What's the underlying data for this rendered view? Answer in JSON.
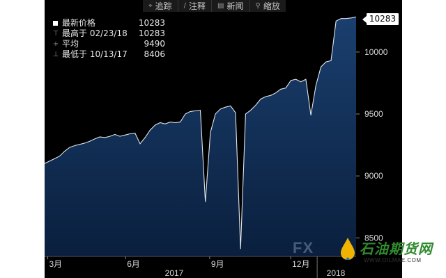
{
  "toolbar": {
    "items": [
      {
        "label": "追踪",
        "icon": "crosshair-icon"
      },
      {
        "label": "注释",
        "icon": "pencil-icon"
      },
      {
        "label": "新闻",
        "icon": "news-icon"
      },
      {
        "label": "缩放",
        "icon": "magnifier-icon"
      }
    ]
  },
  "legend": {
    "last": {
      "label": "最新价格",
      "value": "10283"
    },
    "high": {
      "label": "最高于 02/23/18",
      "value": "10283"
    },
    "avg": {
      "label": "平均",
      "value": "9490"
    },
    "low": {
      "label": "最低于 10/13/17",
      "value": "8406"
    }
  },
  "last_tag": "10283",
  "watermark": {
    "logo": "FX",
    "chinese": "石油期货网",
    "url": "WWW.OILMAE.COM"
  },
  "colors": {
    "background": "#000000",
    "fill": "#0f2a4f",
    "line": "#dfe6ee",
    "axis_text": "#d8d8d8"
  },
  "chart_data": {
    "type": "area",
    "title": "",
    "xlabel": "",
    "ylabel": "",
    "ylim": [
      8350,
      10420
    ],
    "y_ticks": [
      8500,
      9000,
      9500,
      10000
    ],
    "y_tick_labels": [
      "8500",
      "9000",
      "9500",
      "10000"
    ],
    "x_tick_labels": [
      "3月",
      "6月",
      "9月",
      "12月"
    ],
    "year_labels": [
      "2017",
      "2018"
    ],
    "grid": false,
    "series": [
      {
        "values": [
          9100,
          9120,
          9140,
          9160,
          9200,
          9230,
          9245,
          9255,
          9265,
          9280,
          9300,
          9315,
          9310,
          9320,
          9335,
          9320,
          9330,
          9340,
          9345,
          9260,
          9310,
          9370,
          9410,
          9430,
          9420,
          9435,
          9430,
          9435,
          9500,
          9520,
          9525,
          9530,
          8790,
          9350,
          9500,
          9540,
          9555,
          9565,
          9510,
          8410,
          9500,
          9530,
          9570,
          9620,
          9640,
          9650,
          9670,
          9700,
          9710,
          9770,
          9780,
          9760,
          9780,
          9490,
          9730,
          9880,
          9920,
          9930,
          10250,
          10270,
          10270,
          10275,
          10283
        ]
      }
    ],
    "last_value": 10283,
    "high": {
      "date": "02/23/18",
      "value": 10283
    },
    "average": 9490,
    "low": {
      "date": "10/13/17",
      "value": 8406
    }
  }
}
